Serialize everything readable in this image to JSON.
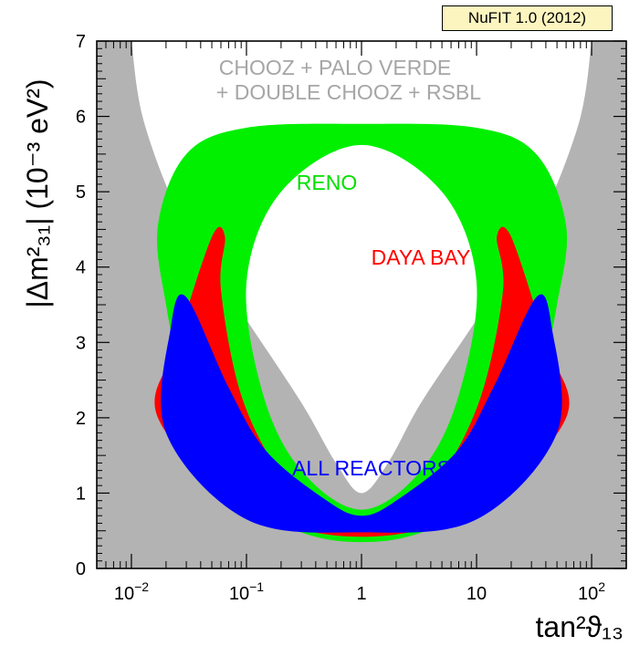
{
  "badge": "NuFIT 1.0 (2012)",
  "colors": {
    "excluded": "#b3b3b3",
    "reno": "#00f000",
    "daya_bay": "#ff0000",
    "all_reactors": "#0000ff",
    "background": "#ffffff"
  },
  "chart_data": {
    "type": "contour",
    "x_scale": "log",
    "xlim": [
      0.005,
      200
    ],
    "ylim": [
      0,
      7
    ],
    "xlabel": "tan²ϑ₁₃",
    "ylabel": "|Δm²₃₁| (10⁻³ eV²)",
    "x_ticks": [
      {
        "value": 0.01,
        "base": "10",
        "exp": "−2"
      },
      {
        "value": 0.1,
        "base": "10",
        "exp": "−1"
      },
      {
        "value": 1,
        "base": "1",
        "exp": ""
      },
      {
        "value": 10,
        "base": "10",
        "exp": ""
      },
      {
        "value": 100,
        "base": "10",
        "exp": "2"
      }
    ],
    "y_ticks": [
      0,
      1,
      2,
      3,
      4,
      5,
      6,
      7
    ],
    "labels": {
      "chooz_line1": "CHOOZ + PALO VERDE",
      "chooz_line2": "+ DOUBLE CHOOZ + RSBL",
      "reno": "RENO",
      "daya_bay": "DAYA BAY",
      "all_reactors": "ALL REACTORS"
    },
    "regions": [
      {
        "name": "CHOOZ + PALO VERDE + DOUBLE CHOOZ + RSBL",
        "role": "allowed region (white) inside gray exclusion",
        "outer": [
          [
            0.01,
            7.0
          ],
          [
            0.013,
            5.9
          ],
          [
            0.03,
            4.5
          ],
          [
            0.1,
            3.3
          ],
          [
            0.3,
            2.2
          ],
          [
            0.6,
            1.4
          ],
          [
            1,
            1.0
          ],
          [
            1.7,
            1.4
          ],
          [
            3.3,
            2.2
          ],
          [
            10,
            3.3
          ],
          [
            33,
            4.5
          ],
          [
            77,
            5.9
          ],
          [
            100,
            7.0
          ]
        ]
      },
      {
        "name": "RENO",
        "role": "allowed band",
        "outer": [
          [
            0.017,
            4.55
          ],
          [
            0.02,
            3.5
          ],
          [
            0.03,
            2.3
          ],
          [
            0.06,
            1.3
          ],
          [
            0.15,
            0.7
          ],
          [
            0.4,
            0.42
          ],
          [
            1,
            0.35
          ],
          [
            2.5,
            0.42
          ],
          [
            6.7,
            0.7
          ],
          [
            17,
            1.3
          ],
          [
            33,
            2.3
          ],
          [
            50,
            3.5
          ],
          [
            60,
            4.55
          ],
          [
            33,
            5.5
          ],
          [
            10,
            5.85
          ],
          [
            1,
            5.9
          ],
          [
            0.1,
            5.85
          ],
          [
            0.03,
            5.5
          ]
        ],
        "inner": [
          [
            0.1,
            3.8
          ],
          [
            0.14,
            2.3
          ],
          [
            0.3,
            1.3
          ],
          [
            1,
            0.78
          ],
          [
            3.3,
            1.3
          ],
          [
            7,
            2.3
          ],
          [
            10,
            3.8
          ],
          [
            5,
            5.0
          ],
          [
            1,
            5.62
          ],
          [
            0.2,
            5.0
          ]
        ]
      },
      {
        "name": "DAYA BAY",
        "role": "allowed band",
        "outer": [
          [
            0.065,
            4.4
          ],
          [
            0.06,
            3.7
          ],
          [
            0.09,
            2.3
          ],
          [
            0.2,
            1.25
          ],
          [
            0.5,
            0.75
          ],
          [
            1,
            0.62
          ],
          [
            2,
            0.75
          ],
          [
            5,
            1.25
          ],
          [
            11,
            2.3
          ],
          [
            17,
            3.7
          ],
          [
            15,
            4.4
          ],
          [
            20,
            4.4
          ],
          [
            40,
            3.0
          ],
          [
            60,
            2.0
          ],
          [
            10,
            0.8
          ],
          [
            1,
            0.42
          ],
          [
            0.1,
            0.8
          ],
          [
            0.017,
            2.0
          ],
          [
            0.025,
            3.0
          ],
          [
            0.05,
            4.4
          ]
        ]
      },
      {
        "name": "ALL REACTORS",
        "role": "allowed band",
        "outer": [
          [
            0.03,
            3.6
          ],
          [
            0.07,
            2.4
          ],
          [
            0.15,
            1.55
          ],
          [
            0.5,
            0.9
          ],
          [
            1,
            0.7
          ],
          [
            2,
            0.9
          ],
          [
            6.7,
            1.55
          ],
          [
            14,
            2.4
          ],
          [
            33,
            3.6
          ],
          [
            45,
            3.2
          ],
          [
            50,
            1.8
          ],
          [
            10,
            0.65
          ],
          [
            1,
            0.48
          ],
          [
            0.1,
            0.65
          ],
          [
            0.02,
            1.8
          ],
          [
            0.022,
            3.2
          ]
        ]
      }
    ]
  }
}
